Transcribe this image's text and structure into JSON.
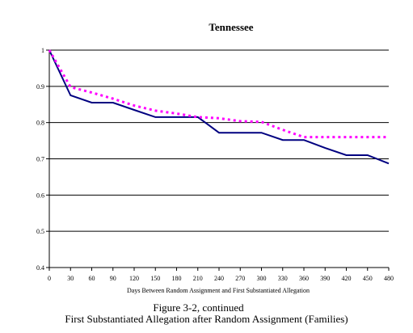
{
  "chart_data": {
    "type": "line",
    "title": "Tennessee",
    "xlabel": "Days Between Random Assignment and First Substantiated Allegation",
    "ylabel": "",
    "x": [
      0,
      30,
      60,
      90,
      120,
      150,
      180,
      210,
      240,
      270,
      300,
      330,
      360,
      390,
      420,
      450,
      480
    ],
    "xlim": [
      0,
      480
    ],
    "ylim": [
      0.4,
      1
    ],
    "yticks": [
      "0.4",
      "0.5",
      "0.6",
      "0.7",
      "0.8",
      "0.9",
      "1"
    ],
    "grid": "horizontal",
    "legend": "none",
    "series": [
      {
        "style": "solid",
        "color": "#000080",
        "points": [
          [
            0,
            1
          ],
          [
            30,
            0.875
          ],
          [
            60,
            0.855
          ],
          [
            90,
            0.855
          ],
          [
            120,
            0.835
          ],
          [
            150,
            0.815
          ],
          [
            180,
            0.815
          ],
          [
            210,
            0.815
          ],
          [
            240,
            0.772
          ],
          [
            270,
            0.772
          ],
          [
            300,
            0.772
          ],
          [
            330,
            0.752
          ],
          [
            360,
            0.752
          ],
          [
            390,
            0.73
          ],
          [
            420,
            0.71
          ],
          [
            450,
            0.71
          ],
          [
            480,
            0.687
          ]
        ]
      },
      {
        "style": "dotted",
        "color": "#ff00ff",
        "points": [
          [
            0,
            1
          ],
          [
            30,
            0.898
          ],
          [
            60,
            0.883
          ],
          [
            90,
            0.866
          ],
          [
            120,
            0.847
          ],
          [
            150,
            0.833
          ],
          [
            180,
            0.825
          ],
          [
            210,
            0.815
          ],
          [
            240,
            0.812
          ],
          [
            270,
            0.804
          ],
          [
            300,
            0.802
          ],
          [
            330,
            0.78
          ],
          [
            360,
            0.76
          ],
          [
            390,
            0.76
          ],
          [
            420,
            0.76
          ],
          [
            450,
            0.76
          ],
          [
            480,
            0.76
          ]
        ]
      }
    ]
  },
  "caption": {
    "line1": "Figure 3-2, continued",
    "line2": "First Substantiated Allegation after Random Assignment (Families)"
  }
}
